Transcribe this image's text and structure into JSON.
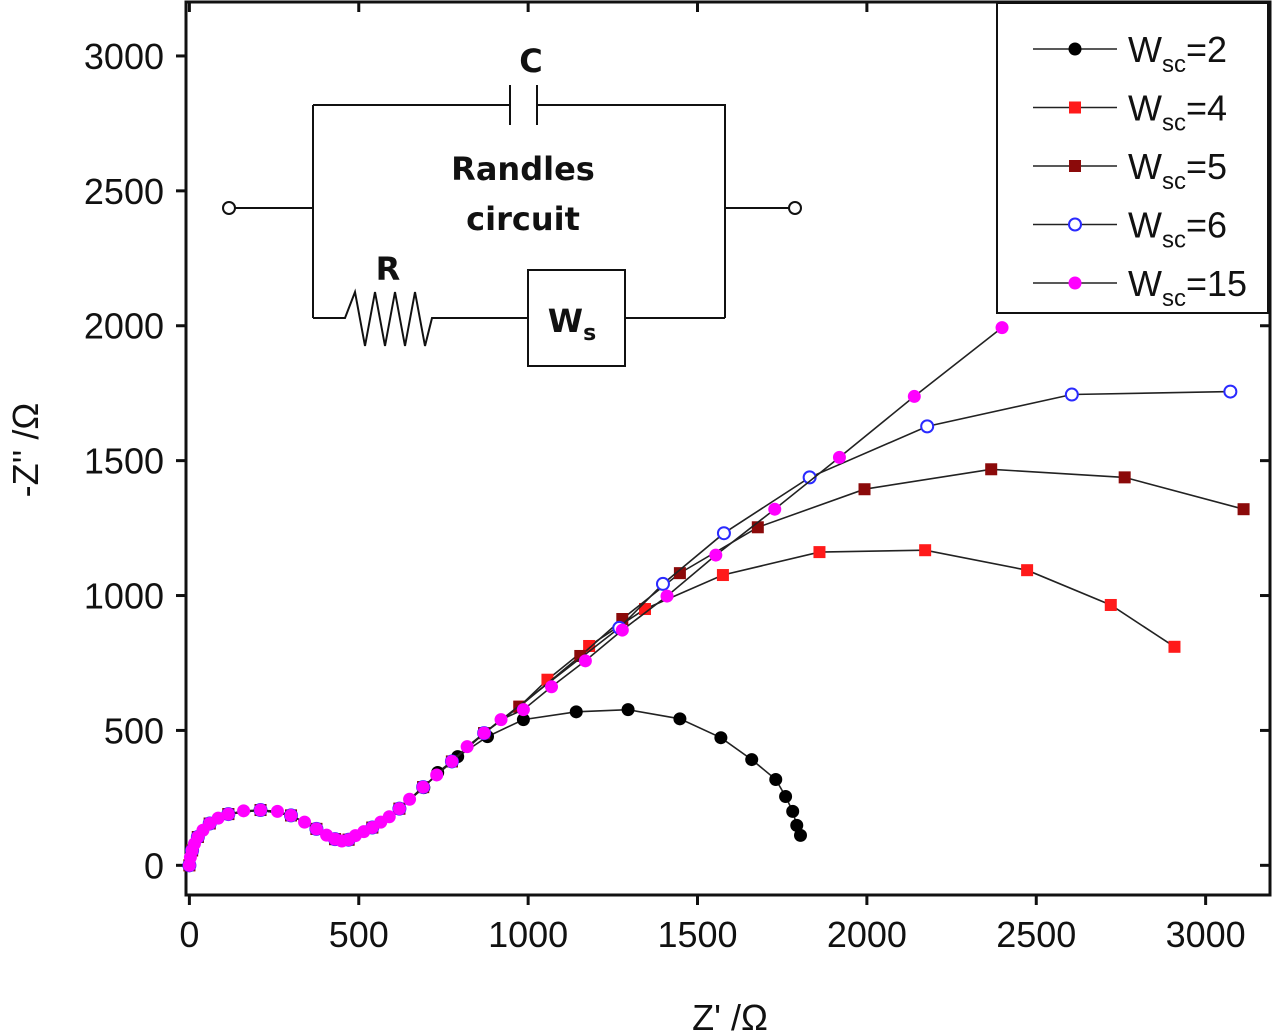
{
  "chart_data": {
    "type": "line",
    "x_label": "Z' /Ω",
    "y_label": "-Z'' /Ω",
    "xlim": [
      -10,
      3190
    ],
    "ylim": [
      -110,
      3200
    ],
    "xticks": [
      0,
      500,
      1000,
      1500,
      2000,
      2500,
      3000
    ],
    "yticks": [
      0,
      500,
      1000,
      1500,
      2000,
      2500,
      3000
    ],
    "legend": "upper right",
    "inset": {
      "capacitor": "C",
      "title_lines": [
        "Randles",
        "circuit"
      ],
      "resistor": "R",
      "warburg": "W",
      "warburg_sub": "s"
    },
    "series": [
      {
        "name": {
          "main": "W",
          "sub": "sc",
          "tail": "=2"
        },
        "color": "#000000",
        "marker": "circle",
        "x": [
          0,
          8,
          25,
          60,
          115,
          210,
          300,
          375,
          430,
          470,
          540,
          620,
          692,
          733,
          792,
          880,
          986,
          1142,
          1295,
          1448,
          1569,
          1660,
          1731,
          1760,
          1781,
          1793,
          1804
        ],
        "values": [
          0,
          55,
          105,
          155,
          190,
          205,
          185,
          135,
          97,
          95,
          140,
          210,
          288,
          344,
          403,
          477,
          540,
          569,
          577,
          543,
          473,
          392,
          318,
          255,
          200,
          148,
          111
        ]
      },
      {
        "name": {
          "main": "W",
          "sub": "sc",
          "tail": "=4"
        },
        "color": "#ff1a1a",
        "marker": "square",
        "x": [
          0,
          8,
          25,
          60,
          115,
          210,
          300,
          375,
          430,
          470,
          540,
          620,
          690,
          775,
          870,
          974,
          1057,
          1180,
          1345,
          1575,
          1860,
          2172,
          2473,
          2720,
          2908
        ],
        "values": [
          0,
          55,
          105,
          155,
          190,
          205,
          185,
          135,
          97,
          95,
          140,
          210,
          290,
          385,
          490,
          588,
          688,
          813,
          950,
          1076,
          1161,
          1168,
          1094,
          965,
          810
        ]
      },
      {
        "name": {
          "main": "W",
          "sub": "sc",
          "tail": "=5"
        },
        "color": "#8b0a0a",
        "marker": "square",
        "x": [
          0,
          8,
          25,
          60,
          115,
          210,
          300,
          375,
          430,
          470,
          540,
          620,
          690,
          775,
          870,
          974,
          1154,
          1278,
          1448,
          1678,
          1993,
          2367,
          2761,
          3112
        ],
        "values": [
          0,
          55,
          105,
          155,
          190,
          205,
          185,
          135,
          97,
          95,
          140,
          210,
          290,
          385,
          490,
          588,
          776,
          913,
          1083,
          1253,
          1394,
          1468,
          1438,
          1320
        ]
      },
      {
        "name": {
          "main": "W",
          "sub": "sc",
          "tail": "=6"
        },
        "color": "#2a2aff",
        "marker": "open-circle",
        "x": [
          0,
          8,
          25,
          60,
          115,
          210,
          300,
          375,
          430,
          470,
          540,
          620,
          690,
          775,
          870,
          1269,
          1398,
          1578,
          1831,
          2178,
          2605,
          3073
        ],
        "values": [
          0,
          55,
          105,
          155,
          190,
          205,
          185,
          135,
          97,
          95,
          140,
          210,
          290,
          385,
          490,
          880,
          1043,
          1231,
          1438,
          1627,
          1745,
          1756
        ]
      },
      {
        "name": {
          "main": "W",
          "sub": "sc",
          "tail": "=15"
        },
        "color": "#ff00ff",
        "marker": "circle",
        "x": [
          0,
          3,
          8,
          15,
          25,
          40,
          60,
          85,
          115,
          160,
          210,
          260,
          300,
          340,
          375,
          405,
          430,
          450,
          470,
          490,
          515,
          540,
          565,
          590,
          620,
          650,
          690,
          730,
          775,
          820,
          870,
          920,
          986,
          1069,
          1169,
          1278,
          1410,
          1554,
          1728,
          1919,
          2140,
          2399
        ],
        "values": [
          0,
          30,
          55,
          80,
          105,
          130,
          155,
          175,
          190,
          202,
          205,
          200,
          185,
          160,
          135,
          112,
          97,
          90,
          95,
          110,
          125,
          140,
          160,
          180,
          210,
          245,
          290,
          335,
          385,
          440,
          490,
          540,
          577,
          662,
          758,
          872,
          998,
          1150,
          1320,
          1512,
          1738,
          1993
        ]
      }
    ]
  }
}
